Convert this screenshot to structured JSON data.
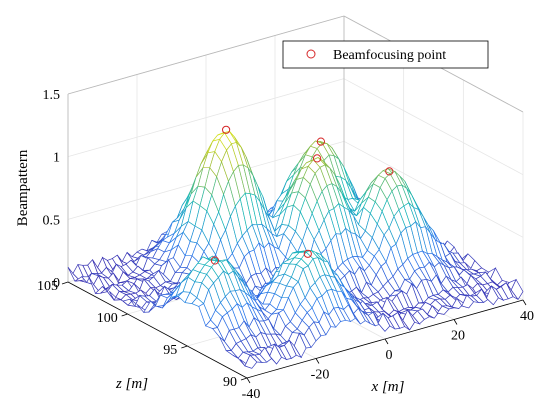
{
  "chart_data": {
    "type": "surface",
    "title": "",
    "xlabel": "x [m]",
    "ylabel": "z [m]",
    "zlabel": "Beampattern",
    "xlim": [
      -40,
      40
    ],
    "ylim": [
      90,
      105
    ],
    "zlim": [
      0,
      1.5
    ],
    "xticks": [
      -40,
      -20,
      0,
      20,
      40
    ],
    "yticks": [
      90,
      95,
      100,
      105
    ],
    "zticks": [
      0,
      0.5,
      1,
      1.5
    ],
    "grid": true,
    "legend": {
      "placement": "top-right",
      "entries": [
        "Beamfocusing point"
      ]
    },
    "colors": {
      "low": "#3e26a8",
      "mid": "#17b8b6",
      "high": "#f9fb15",
      "marker": "#d62728"
    },
    "lobes": [
      {
        "x": -32,
        "z": 95,
        "height": 0.62
      },
      {
        "x": -8,
        "z": 101,
        "height": 1.17
      },
      {
        "x": -12,
        "z": 93,
        "height": 0.62
      },
      {
        "x": 8,
        "z": 98,
        "height": 0.97
      },
      {
        "x": 16,
        "z": 100,
        "height": 0.94
      },
      {
        "x": 22,
        "z": 96,
        "height": 0.86
      }
    ],
    "focusing_points": [
      {
        "x": -32,
        "z": 95,
        "value": 0.62
      },
      {
        "x": -8,
        "z": 101,
        "value": 1.17
      },
      {
        "x": -12,
        "z": 93,
        "value": 0.62
      },
      {
        "x": 8,
        "z": 98,
        "value": 0.97
      },
      {
        "x": 16,
        "z": 100,
        "value": 0.94
      },
      {
        "x": 22,
        "z": 96,
        "value": 0.86
      }
    ]
  }
}
